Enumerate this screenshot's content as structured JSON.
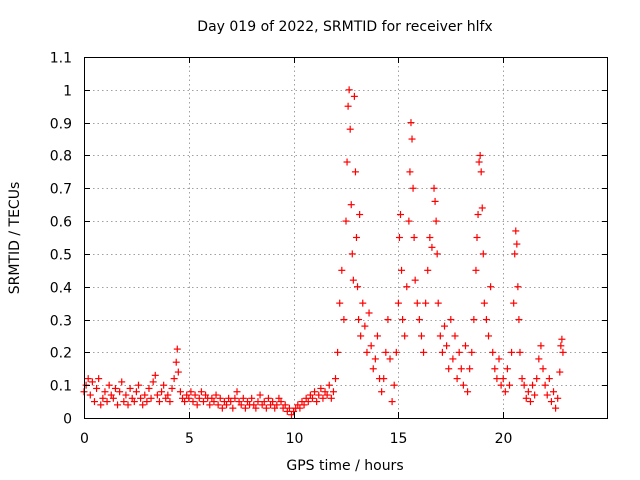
{
  "chart_data": {
    "type": "scatter",
    "title": "Day 019 of 2022, SRMTID for receiver hlfx",
    "xlabel": "GPS time / hours",
    "ylabel": "SRMTID / TECUs",
    "xlim": [
      0,
      25
    ],
    "ylim": [
      0,
      1.1
    ],
    "xticks": [
      "0",
      "5",
      "10",
      "15",
      "20"
    ],
    "yticks": [
      "0",
      "0.1",
      "0.2",
      "0.3",
      "0.4",
      "0.5",
      "0.6",
      "0.7",
      "0.8",
      "0.9",
      "1",
      "1.1"
    ],
    "grid": true,
    "marker": "+",
    "marker_color": "#ff0000",
    "series": [
      {
        "name": "SRMTID",
        "points": [
          [
            0.0,
            0.08
          ],
          [
            0.1,
            0.1
          ],
          [
            0.2,
            0.12
          ],
          [
            0.3,
            0.07
          ],
          [
            0.4,
            0.11
          ],
          [
            0.5,
            0.05
          ],
          [
            0.6,
            0.09
          ],
          [
            0.7,
            0.12
          ],
          [
            0.8,
            0.04
          ],
          [
            0.9,
            0.06
          ],
          [
            1.0,
            0.08
          ],
          [
            1.1,
            0.05
          ],
          [
            1.2,
            0.1
          ],
          [
            1.3,
            0.07
          ],
          [
            1.4,
            0.06
          ],
          [
            1.5,
            0.09
          ],
          [
            1.6,
            0.04
          ],
          [
            1.7,
            0.08
          ],
          [
            1.8,
            0.11
          ],
          [
            1.9,
            0.05
          ],
          [
            2.0,
            0.07
          ],
          [
            2.1,
            0.04
          ],
          [
            2.2,
            0.09
          ],
          [
            2.3,
            0.06
          ],
          [
            2.4,
            0.05
          ],
          [
            2.5,
            0.08
          ],
          [
            2.6,
            0.1
          ],
          [
            2.7,
            0.06
          ],
          [
            2.8,
            0.04
          ],
          [
            2.9,
            0.07
          ],
          [
            3.0,
            0.05
          ],
          [
            3.1,
            0.09
          ],
          [
            3.2,
            0.06
          ],
          [
            3.3,
            0.11
          ],
          [
            3.4,
            0.13
          ],
          [
            3.5,
            0.07
          ],
          [
            3.6,
            0.05
          ],
          [
            3.7,
            0.08
          ],
          [
            3.8,
            0.1
          ],
          [
            3.9,
            0.06
          ],
          [
            4.0,
            0.07
          ],
          [
            4.1,
            0.05
          ],
          [
            4.2,
            0.09
          ],
          [
            4.3,
            0.12
          ],
          [
            4.4,
            0.17
          ],
          [
            4.45,
            0.21
          ],
          [
            4.5,
            0.14
          ],
          [
            4.6,
            0.08
          ],
          [
            4.7,
            0.06
          ],
          [
            4.8,
            0.05
          ],
          [
            4.9,
            0.07
          ],
          [
            5.0,
            0.06
          ],
          [
            5.1,
            0.08
          ],
          [
            5.2,
            0.05
          ],
          [
            5.3,
            0.07
          ],
          [
            5.4,
            0.04
          ],
          [
            5.5,
            0.06
          ],
          [
            5.6,
            0.08
          ],
          [
            5.7,
            0.05
          ],
          [
            5.8,
            0.07
          ],
          [
            5.9,
            0.06
          ],
          [
            6.0,
            0.04
          ],
          [
            6.1,
            0.06
          ],
          [
            6.2,
            0.05
          ],
          [
            6.3,
            0.07
          ],
          [
            6.4,
            0.04
          ],
          [
            6.5,
            0.06
          ],
          [
            6.6,
            0.03
          ],
          [
            6.7,
            0.05
          ],
          [
            6.8,
            0.04
          ],
          [
            6.9,
            0.06
          ],
          [
            7.0,
            0.05
          ],
          [
            7.1,
            0.03
          ],
          [
            7.2,
            0.06
          ],
          [
            7.3,
            0.08
          ],
          [
            7.4,
            0.05
          ],
          [
            7.5,
            0.04
          ],
          [
            7.6,
            0.06
          ],
          [
            7.7,
            0.03
          ],
          [
            7.8,
            0.05
          ],
          [
            7.9,
            0.04
          ],
          [
            8.0,
            0.06
          ],
          [
            8.1,
            0.04
          ],
          [
            8.2,
            0.03
          ],
          [
            8.3,
            0.05
          ],
          [
            8.4,
            0.07
          ],
          [
            8.5,
            0.04
          ],
          [
            8.6,
            0.05
          ],
          [
            8.7,
            0.03
          ],
          [
            8.8,
            0.06
          ],
          [
            8.9,
            0.04
          ],
          [
            9.0,
            0.05
          ],
          [
            9.1,
            0.03
          ],
          [
            9.2,
            0.04
          ],
          [
            9.3,
            0.06
          ],
          [
            9.4,
            0.05
          ],
          [
            9.5,
            0.03
          ],
          [
            9.6,
            0.04
          ],
          [
            9.7,
            0.02
          ],
          [
            9.8,
            0.03
          ],
          [
            9.9,
            0.01
          ],
          [
            10.0,
            0.02
          ],
          [
            10.1,
            0.03
          ],
          [
            10.2,
            0.04
          ],
          [
            10.3,
            0.03
          ],
          [
            10.4,
            0.05
          ],
          [
            10.5,
            0.04
          ],
          [
            10.6,
            0.06
          ],
          [
            10.7,
            0.05
          ],
          [
            10.8,
            0.07
          ],
          [
            10.9,
            0.06
          ],
          [
            11.0,
            0.08
          ],
          [
            11.1,
            0.05
          ],
          [
            11.2,
            0.07
          ],
          [
            11.3,
            0.09
          ],
          [
            11.4,
            0.06
          ],
          [
            11.5,
            0.08
          ],
          [
            11.6,
            0.07
          ],
          [
            11.7,
            0.1
          ],
          [
            11.8,
            0.06
          ],
          [
            11.9,
            0.08
          ],
          [
            12.0,
            0.12
          ],
          [
            12.1,
            0.2
          ],
          [
            12.2,
            0.35
          ],
          [
            12.3,
            0.45
          ],
          [
            12.4,
            0.3
          ],
          [
            12.5,
            0.6
          ],
          [
            12.55,
            0.78
          ],
          [
            12.6,
            0.95
          ],
          [
            12.65,
            1.0
          ],
          [
            12.7,
            0.88
          ],
          [
            12.75,
            0.65
          ],
          [
            12.8,
            0.5
          ],
          [
            12.85,
            0.42
          ],
          [
            12.9,
            0.98
          ],
          [
            12.95,
            0.75
          ],
          [
            13.0,
            0.55
          ],
          [
            13.05,
            0.4
          ],
          [
            13.1,
            0.3
          ],
          [
            13.15,
            0.62
          ],
          [
            13.2,
            0.25
          ],
          [
            13.3,
            0.35
          ],
          [
            13.4,
            0.28
          ],
          [
            13.5,
            0.2
          ],
          [
            13.6,
            0.32
          ],
          [
            13.7,
            0.22
          ],
          [
            13.8,
            0.15
          ],
          [
            13.9,
            0.18
          ],
          [
            14.0,
            0.25
          ],
          [
            14.1,
            0.12
          ],
          [
            14.2,
            0.08
          ],
          [
            14.3,
            0.12
          ],
          [
            14.4,
            0.2
          ],
          [
            14.5,
            0.3
          ],
          [
            14.6,
            0.18
          ],
          [
            14.7,
            0.05
          ],
          [
            14.8,
            0.1
          ],
          [
            14.9,
            0.2
          ],
          [
            15.0,
            0.35
          ],
          [
            15.05,
            0.55
          ],
          [
            15.1,
            0.62
          ],
          [
            15.15,
            0.45
          ],
          [
            15.2,
            0.3
          ],
          [
            15.3,
            0.25
          ],
          [
            15.4,
            0.4
          ],
          [
            15.5,
            0.6
          ],
          [
            15.55,
            0.75
          ],
          [
            15.6,
            0.9
          ],
          [
            15.65,
            0.85
          ],
          [
            15.7,
            0.7
          ],
          [
            15.75,
            0.55
          ],
          [
            15.8,
            0.42
          ],
          [
            15.9,
            0.35
          ],
          [
            16.0,
            0.3
          ],
          [
            16.1,
            0.25
          ],
          [
            16.2,
            0.2
          ],
          [
            16.3,
            0.35
          ],
          [
            16.4,
            0.45
          ],
          [
            16.5,
            0.55
          ],
          [
            16.6,
            0.52
          ],
          [
            16.7,
            0.7
          ],
          [
            16.75,
            0.66
          ],
          [
            16.8,
            0.6
          ],
          [
            16.85,
            0.5
          ],
          [
            16.9,
            0.35
          ],
          [
            17.0,
            0.25
          ],
          [
            17.1,
            0.2
          ],
          [
            17.2,
            0.28
          ],
          [
            17.3,
            0.22
          ],
          [
            17.4,
            0.15
          ],
          [
            17.5,
            0.3
          ],
          [
            17.6,
            0.18
          ],
          [
            17.7,
            0.25
          ],
          [
            17.8,
            0.12
          ],
          [
            17.9,
            0.2
          ],
          [
            18.0,
            0.15
          ],
          [
            18.1,
            0.1
          ],
          [
            18.2,
            0.22
          ],
          [
            18.3,
            0.08
          ],
          [
            18.4,
            0.15
          ],
          [
            18.5,
            0.2
          ],
          [
            18.6,
            0.3
          ],
          [
            18.7,
            0.45
          ],
          [
            18.75,
            0.55
          ],
          [
            18.8,
            0.62
          ],
          [
            18.85,
            0.78
          ],
          [
            18.9,
            0.8
          ],
          [
            18.95,
            0.75
          ],
          [
            19.0,
            0.64
          ],
          [
            19.05,
            0.5
          ],
          [
            19.1,
            0.35
          ],
          [
            19.2,
            0.3
          ],
          [
            19.3,
            0.25
          ],
          [
            19.4,
            0.4
          ],
          [
            19.5,
            0.2
          ],
          [
            19.6,
            0.15
          ],
          [
            19.7,
            0.12
          ],
          [
            19.8,
            0.18
          ],
          [
            19.9,
            0.1
          ],
          [
            20.0,
            0.12
          ],
          [
            20.1,
            0.08
          ],
          [
            20.2,
            0.15
          ],
          [
            20.3,
            0.1
          ],
          [
            20.4,
            0.2
          ],
          [
            20.5,
            0.35
          ],
          [
            20.55,
            0.5
          ],
          [
            20.6,
            0.57
          ],
          [
            20.65,
            0.53
          ],
          [
            20.7,
            0.4
          ],
          [
            20.75,
            0.3
          ],
          [
            20.8,
            0.2
          ],
          [
            20.9,
            0.12
          ],
          [
            21.0,
            0.1
          ],
          [
            21.1,
            0.06
          ],
          [
            21.2,
            0.08
          ],
          [
            21.3,
            0.05
          ],
          [
            21.4,
            0.1
          ],
          [
            21.5,
            0.07
          ],
          [
            21.6,
            0.12
          ],
          [
            21.7,
            0.18
          ],
          [
            21.8,
            0.22
          ],
          [
            21.9,
            0.15
          ],
          [
            22.0,
            0.1
          ],
          [
            22.1,
            0.07
          ],
          [
            22.2,
            0.12
          ],
          [
            22.3,
            0.05
          ],
          [
            22.4,
            0.08
          ],
          [
            22.5,
            0.03
          ],
          [
            22.6,
            0.06
          ],
          [
            22.7,
            0.14
          ],
          [
            22.75,
            0.22
          ],
          [
            22.8,
            0.24
          ],
          [
            22.85,
            0.2
          ]
        ]
      }
    ]
  }
}
